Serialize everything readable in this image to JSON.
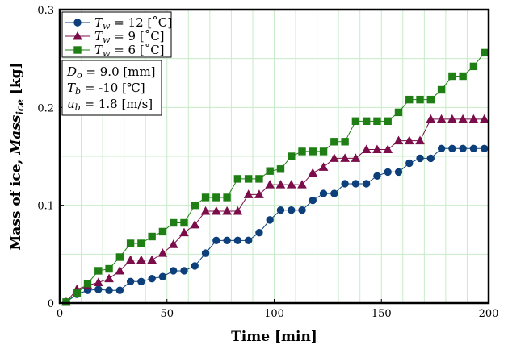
{
  "chart_data": {
    "type": "line",
    "xlabel": "Time [min]",
    "ylabel": {
      "prefix": "Mass of ice, ",
      "italic": "Mass",
      "sub": "ice",
      "suffix": " [kg]"
    },
    "xlim": [
      0,
      200
    ],
    "ylim": [
      0,
      0.3
    ],
    "xticks": [
      0,
      50,
      100,
      150,
      200
    ],
    "yticks": [
      0,
      0.1,
      0.2,
      0.3
    ],
    "ytick_labels": [
      "0",
      "0.1",
      "0.2",
      "0.3"
    ],
    "grid": true,
    "legend_position": "top-left",
    "series": [
      {
        "legend": {
          "var": "T",
          "sub": "w",
          "rest": " = 12 [˚C]"
        },
        "color": "#0d3f7a",
        "marker": "circle",
        "x": [
          3,
          8,
          13,
          18,
          23,
          28,
          33,
          38,
          43,
          48,
          53,
          58,
          63,
          68,
          73,
          78,
          83,
          88,
          93,
          98,
          103,
          108,
          113,
          118,
          123,
          128,
          133,
          138,
          143,
          148,
          153,
          158,
          163,
          168,
          173,
          178,
          183,
          188,
          193,
          198
        ],
        "y": [
          0.001,
          0.009,
          0.013,
          0.014,
          0.013,
          0.013,
          0.022,
          0.022,
          0.025,
          0.027,
          0.033,
          0.033,
          0.038,
          0.051,
          0.064,
          0.064,
          0.064,
          0.064,
          0.072,
          0.085,
          0.095,
          0.095,
          0.095,
          0.105,
          0.112,
          0.112,
          0.122,
          0.122,
          0.122,
          0.13,
          0.134,
          0.134,
          0.143,
          0.148,
          0.148,
          0.158,
          0.158,
          0.158,
          0.158,
          0.158
        ]
      },
      {
        "legend": {
          "var": "T",
          "sub": "w",
          "rest": " = 9 [˚C]"
        },
        "color": "#7a0d4a",
        "marker": "triangle",
        "x": [
          3,
          8,
          13,
          18,
          23,
          28,
          33,
          38,
          43,
          48,
          53,
          58,
          63,
          68,
          73,
          78,
          83,
          88,
          93,
          98,
          103,
          108,
          113,
          118,
          123,
          128,
          133,
          138,
          143,
          148,
          153,
          158,
          163,
          168,
          173,
          178,
          183,
          188,
          193,
          198
        ],
        "y": [
          0.001,
          0.014,
          0.018,
          0.021,
          0.025,
          0.033,
          0.044,
          0.044,
          0.044,
          0.051,
          0.06,
          0.072,
          0.08,
          0.094,
          0.094,
          0.094,
          0.094,
          0.111,
          0.111,
          0.121,
          0.121,
          0.121,
          0.121,
          0.133,
          0.139,
          0.148,
          0.148,
          0.148,
          0.157,
          0.157,
          0.157,
          0.166,
          0.166,
          0.166,
          0.188,
          0.188,
          0.188,
          0.188,
          0.188,
          0.188
        ]
      },
      {
        "legend": {
          "var": "T",
          "sub": "w",
          "rest": " = 6 [˚C]"
        },
        "color": "#1f7f14",
        "marker": "square",
        "x": [
          3,
          8,
          13,
          18,
          23,
          28,
          33,
          38,
          43,
          48,
          53,
          58,
          63,
          68,
          73,
          78,
          83,
          88,
          93,
          98,
          103,
          108,
          113,
          118,
          123,
          128,
          133,
          138,
          143,
          148,
          153,
          158,
          163,
          168,
          173,
          178,
          183,
          188,
          193,
          198
        ],
        "y": [
          0.001,
          0.01,
          0.02,
          0.033,
          0.035,
          0.047,
          0.061,
          0.061,
          0.068,
          0.073,
          0.082,
          0.082,
          0.1,
          0.108,
          0.108,
          0.108,
          0.127,
          0.127,
          0.127,
          0.135,
          0.137,
          0.15,
          0.155,
          0.155,
          0.155,
          0.165,
          0.165,
          0.186,
          0.186,
          0.186,
          0.186,
          0.195,
          0.208,
          0.208,
          0.208,
          0.218,
          0.232,
          0.232,
          0.242,
          0.256
        ]
      }
    ],
    "conditions": [
      {
        "var": "D",
        "sub": "o",
        "rest": " = 9.0 [mm]"
      },
      {
        "var": "T",
        "sub": "b",
        "rest": " = -10 [℃]"
      },
      {
        "var": "u",
        "sub": "b",
        "rest": " = 1.8 [m/s]"
      }
    ]
  }
}
